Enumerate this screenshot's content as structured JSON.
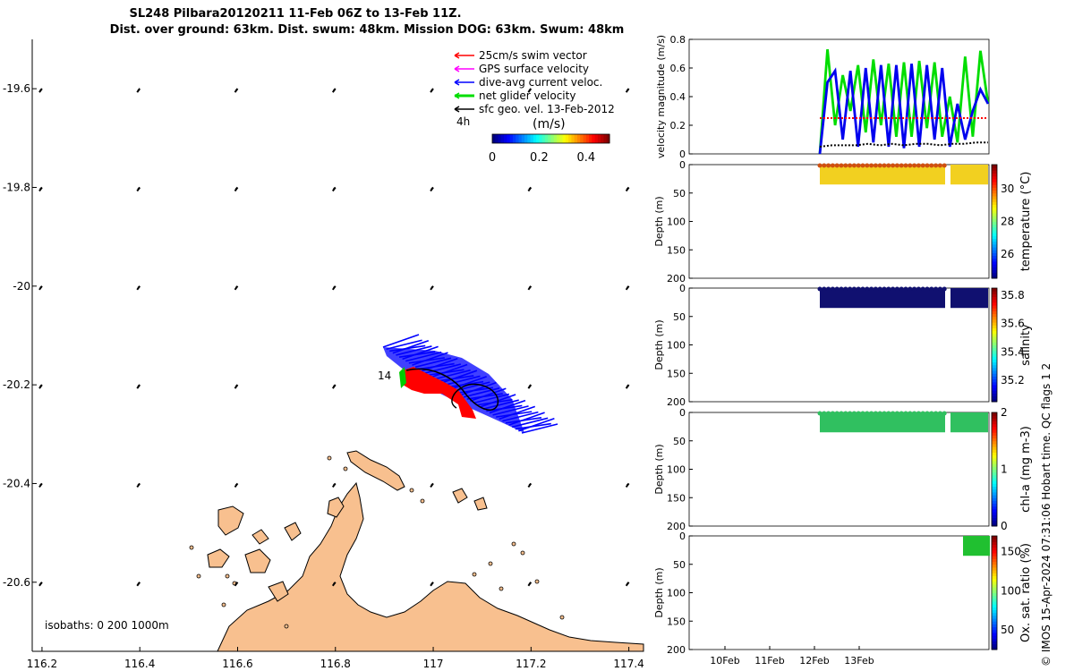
{
  "title_line1": "SL248 Pilbara20120211 11-Feb 06Z to 13-Feb 11Z.",
  "title_line2": "Dist. over ground: 63km. Dist. swum: 48km. Mission DOG: 63km. Swum: 48km",
  "side_caption": "© IMOS 15-Apr-2024 07:31:06 Hobart time. QC flags 1  2",
  "chart_data": [
    {
      "type": "scatter",
      "name": "map",
      "x_ticks": [
        "116.2",
        "116.4",
        "116.6",
        "116.8",
        "117",
        "117.2",
        "117.4"
      ],
      "y_ticks": [
        "-19.6",
        "-19.8",
        "-20",
        "-20.2",
        "-20.4",
        "-20.6"
      ],
      "xlim": [
        116.18,
        117.43
      ],
      "ylim": [
        -20.74,
        -19.5
      ],
      "legend": [
        {
          "label": "25cm/s swim vector",
          "color": "#ff0000"
        },
        {
          "label": "GPS surface velocity",
          "color": "#ff00ff"
        },
        {
          "label": "dive-avg current veloc.",
          "color": "#0000ff"
        },
        {
          "label": "net glider velocity",
          "color": "#00dd00"
        },
        {
          "label": "sfc geo. vel. 13-Feb-2012",
          "color": "#000000"
        }
      ],
      "legend_position": "top-right",
      "vector_scale_label": "4h",
      "colorbar": {
        "label": "(m/s)",
        "ticks": [
          "0",
          "0.2",
          "0.4"
        ],
        "range": [
          0,
          0.5
        ]
      },
      "point_label": "14",
      "isobath_label": "isobaths: 0   200  1000m"
    },
    {
      "type": "line",
      "name": "velocity",
      "ylabel": "velocity magnitude (m/s)",
      "y_ticks": [
        "0",
        "0.2",
        "0.4",
        "0.6",
        "0.8"
      ],
      "ylim": [
        0,
        0.8
      ],
      "x_ticks": [
        "10Feb",
        "11Feb",
        "12Feb",
        "13Feb"
      ],
      "series": [
        {
          "color": "#00dd00",
          "values": [
            0.0,
            0.73,
            0.2,
            0.55,
            0.3,
            0.62,
            0.15,
            0.66,
            0.2,
            0.63,
            0.12,
            0.64,
            0.12,
            0.65,
            0.18,
            0.64,
            0.12,
            0.4,
            0.08,
            0.68,
            0.12,
            0.72,
            0.35
          ]
        },
        {
          "color": "#0000ee",
          "values": [
            0.0,
            0.5,
            0.58,
            0.1,
            0.58,
            0.05,
            0.6,
            0.08,
            0.62,
            0.05,
            0.62,
            0.04,
            0.63,
            0.05,
            0.62,
            0.1,
            0.6,
            0.05,
            0.35,
            0.1,
            0.3,
            0.45,
            0.35
          ]
        },
        {
          "color": "#ff0000",
          "values": [
            0.25,
            0.25,
            0.25,
            0.25,
            0.25,
            0.25,
            0.25,
            0.25,
            0.25,
            0.25,
            0.25,
            0.25
          ]
        },
        {
          "color": "#000000",
          "values": [
            0.05,
            0.06,
            0.06,
            0.06,
            0.07,
            0.06,
            0.07,
            0.06,
            0.07,
            0.07,
            0.06,
            0.07,
            0.07,
            0.08,
            0.08
          ]
        }
      ]
    },
    {
      "type": "heatmap",
      "name": "temperature",
      "ylabel": "Depth (m)",
      "colorbar_label": "temperature (°C)",
      "colorbar_ticks": [
        "26",
        "28",
        "30"
      ],
      "colorbar_range": [
        24.5,
        31.5
      ],
      "y_ticks": [
        "0",
        "50",
        "100",
        "150",
        "200"
      ],
      "ylim": [
        0,
        200
      ],
      "profile_depth_max": 35,
      "surface_color": "#d05010",
      "fill_color": "#f2d020"
    },
    {
      "type": "heatmap",
      "name": "salinity",
      "ylabel": "Depth (m)",
      "colorbar_label": "salinity",
      "colorbar_ticks": [
        "35.2",
        "35.4",
        "35.6",
        "35.8"
      ],
      "colorbar_range": [
        35.05,
        35.85
      ],
      "y_ticks": [
        "0",
        "50",
        "100",
        "150",
        "200"
      ],
      "ylim": [
        0,
        200
      ],
      "profile_depth_max": 35,
      "fill_color": "#101070"
    },
    {
      "type": "heatmap",
      "name": "chl-a",
      "ylabel": "Depth (m)",
      "colorbar_label": "chl-a (mg m-3)",
      "colorbar_ticks": [
        "0",
        "1",
        "2"
      ],
      "colorbar_range": [
        0,
        2
      ],
      "y_ticks": [
        "0",
        "50",
        "100",
        "150",
        "200"
      ],
      "ylim": [
        0,
        200
      ],
      "profile_depth_max": 35,
      "fill_color": "#30c060"
    },
    {
      "type": "heatmap",
      "name": "oxygen",
      "ylabel": "Depth (m)",
      "colorbar_label": "Ox. sat. ratio (%)",
      "colorbar_ticks": [
        "50",
        "100",
        "150"
      ],
      "colorbar_range": [
        25,
        170
      ],
      "y_ticks": [
        "0",
        "50",
        "100",
        "150",
        "200"
      ],
      "ylim": [
        0,
        200
      ],
      "profile_depth_max": 35,
      "fill_color": "#20c030"
    }
  ]
}
